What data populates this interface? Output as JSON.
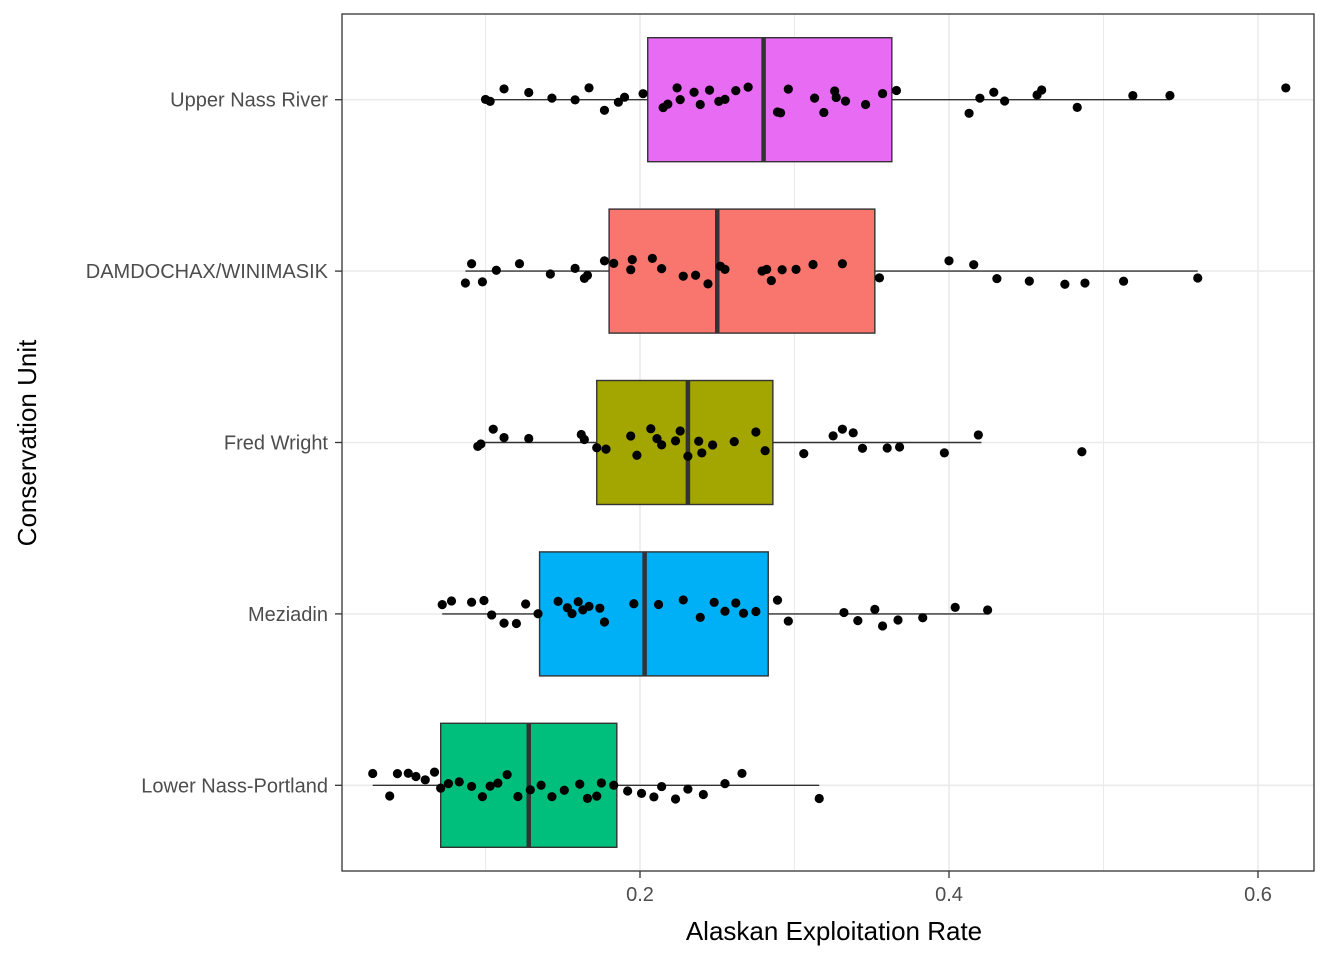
{
  "chart_data": {
    "type": "box",
    "xlabel": "Alaskan Exploitation Rate",
    "ylabel": "Conservation Unit",
    "xlim": [
      0.0,
      0.635
    ],
    "x_ticks": [
      0.2,
      0.4,
      0.6
    ],
    "x_tick_labels": [
      "0.2",
      "0.4",
      "0.6"
    ],
    "grid": true,
    "legend": "none",
    "categories": [
      "Upper Nass River",
      "DAMDOCHAX/WINIMASIK",
      "Fred Wright",
      "Meziadin",
      "Lower Nass-Portland"
    ],
    "series": [
      {
        "category": "Upper Nass River",
        "color": "#E76BF3",
        "min": 0.1,
        "q1": 0.205,
        "median": 0.28,
        "q3": 0.363,
        "max": 0.543,
        "points": [
          0.1,
          0.103,
          0.112,
          0.128,
          0.143,
          0.158,
          0.167,
          0.177,
          0.186,
          0.19,
          0.202,
          0.215,
          0.218,
          0.224,
          0.226,
          0.235,
          0.239,
          0.245,
          0.251,
          0.255,
          0.262,
          0.27,
          0.289,
          0.291,
          0.296,
          0.313,
          0.319,
          0.326,
          0.327,
          0.333,
          0.346,
          0.357,
          0.366,
          0.413,
          0.42,
          0.429,
          0.436,
          0.457,
          0.46,
          0.483,
          0.519,
          0.543,
          0.618
        ]
      },
      {
        "category": "DAMDOCHAX/WINIMASIK",
        "color": "#F8766D",
        "min": 0.087,
        "q1": 0.18,
        "median": 0.25,
        "q3": 0.352,
        "max": 0.561,
        "points": [
          0.087,
          0.091,
          0.098,
          0.107,
          0.122,
          0.142,
          0.158,
          0.164,
          0.166,
          0.177,
          0.183,
          0.194,
          0.195,
          0.208,
          0.214,
          0.228,
          0.236,
          0.244,
          0.252,
          0.255,
          0.279,
          0.282,
          0.285,
          0.292,
          0.301,
          0.312,
          0.331,
          0.355,
          0.4,
          0.416,
          0.431,
          0.452,
          0.475,
          0.488,
          0.513,
          0.561
        ]
      },
      {
        "category": "Fred Wright",
        "color": "#A3A500",
        "min": 0.095,
        "q1": 0.172,
        "median": 0.231,
        "q3": 0.286,
        "max": 0.421,
        "points": [
          0.095,
          0.097,
          0.105,
          0.112,
          0.128,
          0.162,
          0.164,
          0.172,
          0.178,
          0.194,
          0.198,
          0.207,
          0.211,
          0.214,
          0.223,
          0.226,
          0.231,
          0.238,
          0.24,
          0.247,
          0.261,
          0.275,
          0.281,
          0.306,
          0.325,
          0.331,
          0.338,
          0.344,
          0.36,
          0.368,
          0.397,
          0.419,
          0.486
        ]
      },
      {
        "category": "Meziadin",
        "color": "#00B0F6",
        "min": 0.072,
        "q1": 0.135,
        "median": 0.203,
        "q3": 0.283,
        "max": 0.425,
        "points": [
          0.072,
          0.078,
          0.091,
          0.099,
          0.104,
          0.112,
          0.12,
          0.126,
          0.134,
          0.147,
          0.153,
          0.156,
          0.16,
          0.163,
          0.167,
          0.174,
          0.177,
          0.196,
          0.212,
          0.228,
          0.239,
          0.248,
          0.255,
          0.262,
          0.267,
          0.275,
          0.289,
          0.296,
          0.332,
          0.341,
          0.352,
          0.357,
          0.367,
          0.383,
          0.404,
          0.425
        ]
      },
      {
        "category": "Lower Nass-Portland",
        "color": "#00BF7D",
        "min": 0.027,
        "q1": 0.071,
        "median": 0.128,
        "q3": 0.185,
        "max": 0.316,
        "points": [
          0.027,
          0.038,
          0.043,
          0.05,
          0.055,
          0.061,
          0.067,
          0.071,
          0.076,
          0.083,
          0.091,
          0.098,
          0.103,
          0.108,
          0.114,
          0.121,
          0.129,
          0.136,
          0.143,
          0.151,
          0.161,
          0.166,
          0.172,
          0.175,
          0.183,
          0.192,
          0.201,
          0.209,
          0.214,
          0.223,
          0.231,
          0.241,
          0.255,
          0.266,
          0.316
        ]
      }
    ]
  }
}
